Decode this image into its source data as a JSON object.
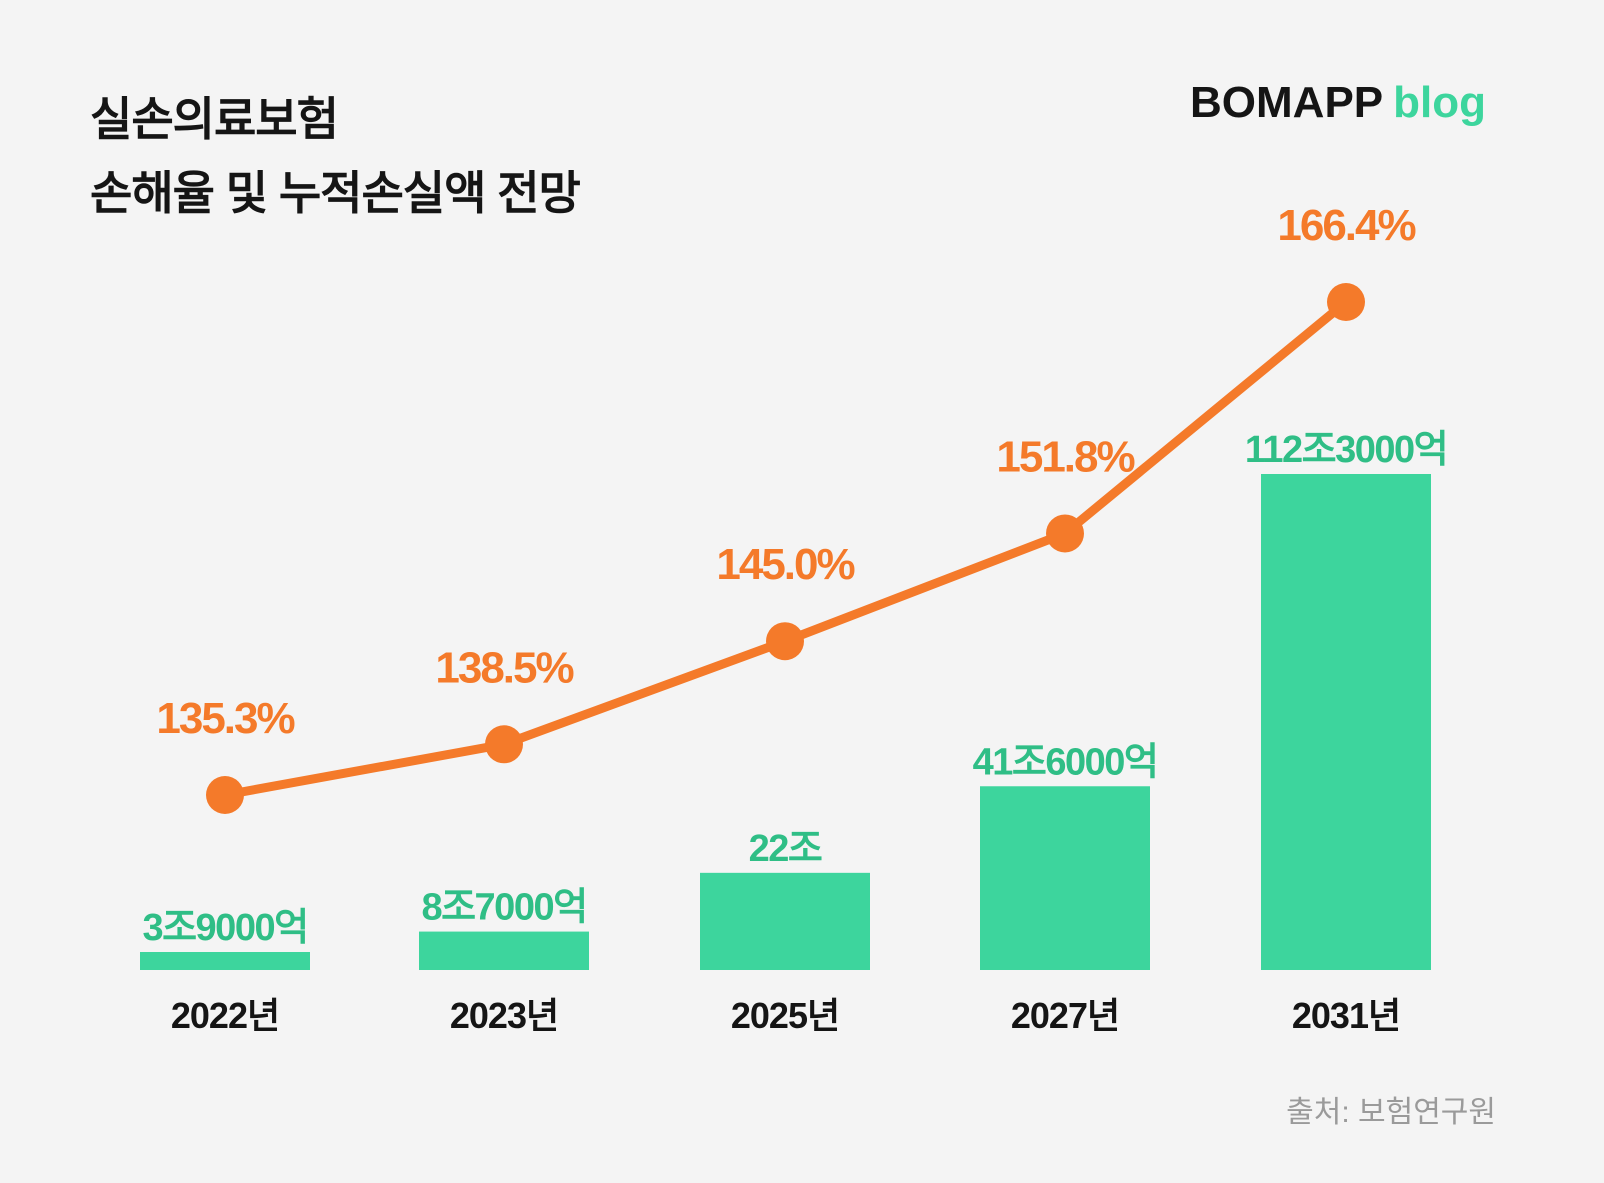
{
  "header": {
    "title_line1": "실손의료보험",
    "title_line2": "손해율 및 누적손실액 전망",
    "brand_name": "BOMAPP",
    "brand_suffix": "blog"
  },
  "source": "출처: 보험연구원",
  "colors": {
    "background": "#f4f4f4",
    "bar": "#3dd59d",
    "bar_label": "#2fbe86",
    "line": "#f47a2a",
    "text": "#151515",
    "source": "#9a9a9a"
  },
  "chart_data": {
    "type": "bar",
    "categories": [
      "2022년",
      "2023년",
      "2025년",
      "2027년",
      "2031년"
    ],
    "series": [
      {
        "type": "bar",
        "unit": "억",
        "values": [
          39000,
          87000,
          220000,
          416000,
          1123000
        ],
        "labels": [
          "3조9000억",
          "8조7000억",
          "22조",
          "41조6000억",
          "112조3000억"
        ]
      },
      {
        "type": "line",
        "unit": "%",
        "values": [
          135.3,
          138.5,
          145.0,
          151.8,
          166.4
        ],
        "labels": [
          "135.3%",
          "138.5%",
          "145.0%",
          "151.8%",
          "166.4%"
        ]
      }
    ],
    "grid": false,
    "legend": "none"
  }
}
